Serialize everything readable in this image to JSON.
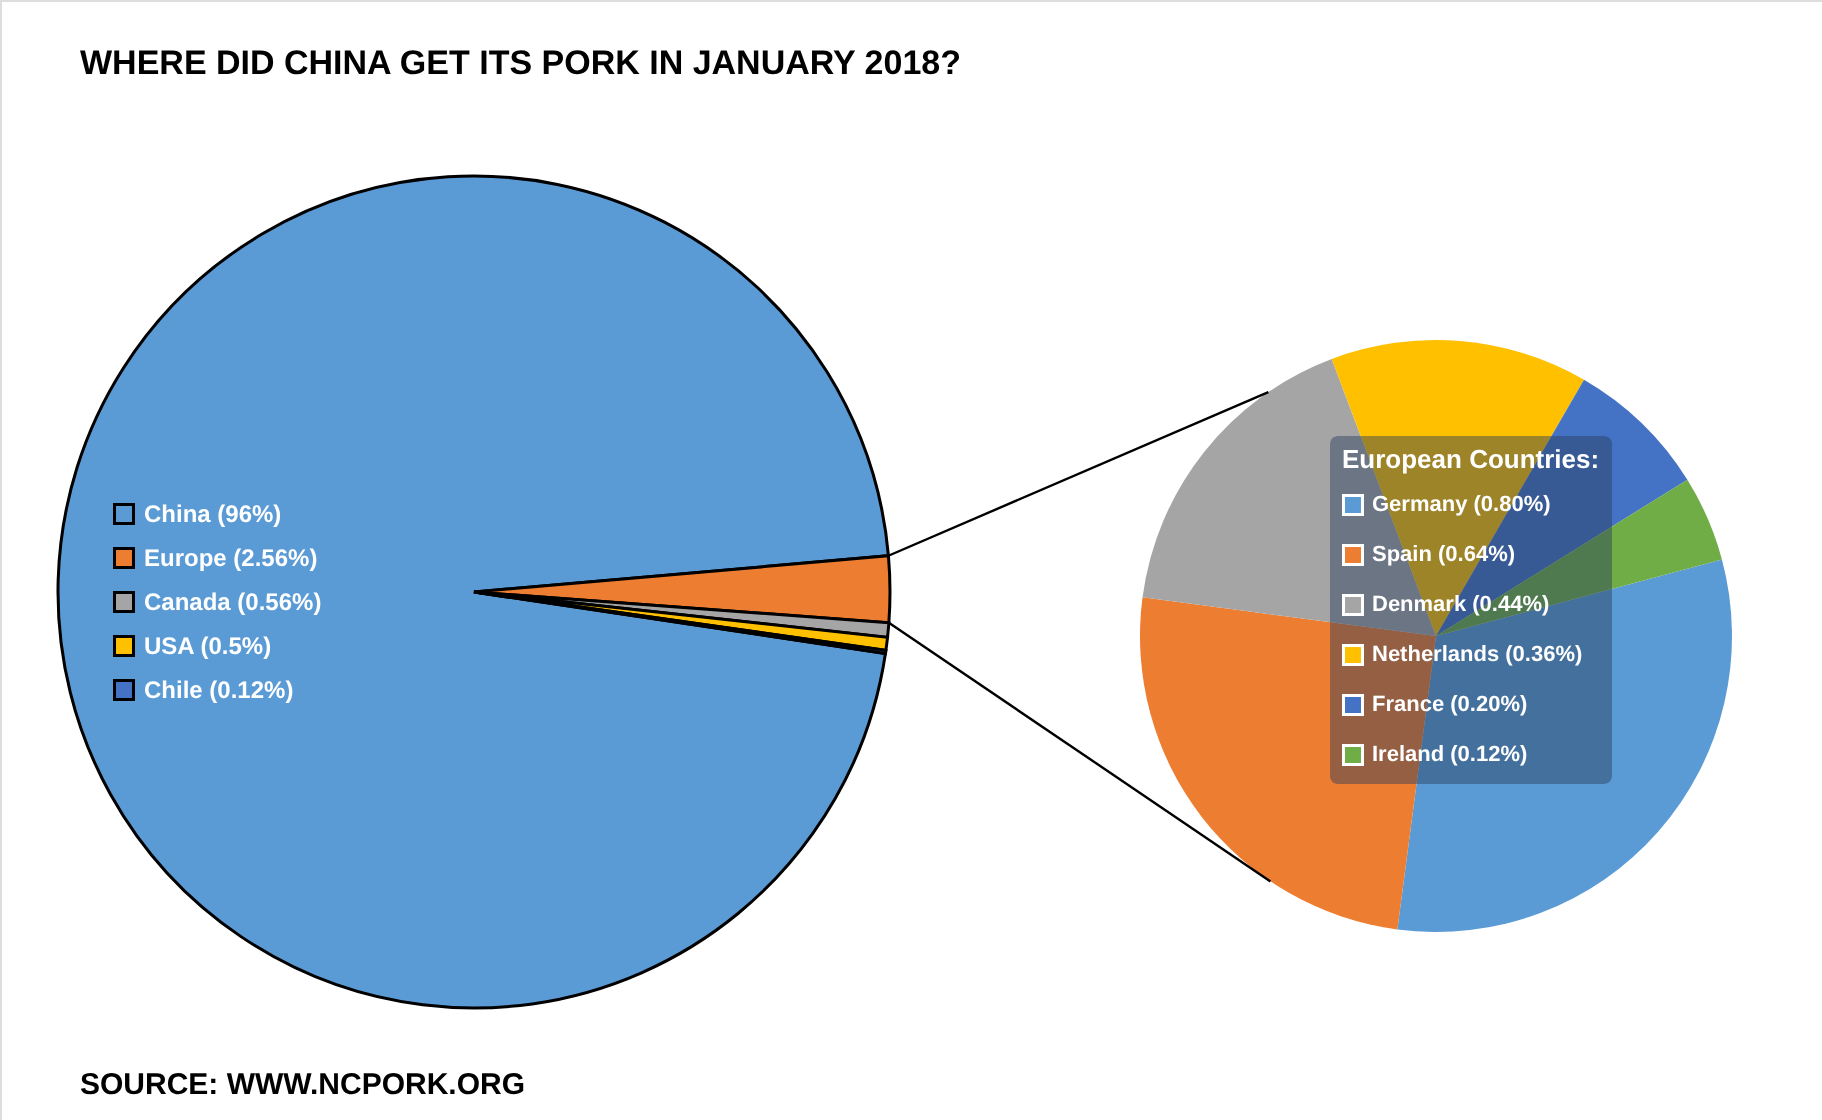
{
  "chart_data": [
    {
      "type": "pie",
      "title": "WHERE DID CHINA GET ITS PORK IN JANUARY 2018?",
      "annotations": [
        "SOURCE: WWW.NCPORK.ORG"
      ],
      "legend": "left",
      "categories": [
        "China  (96%)",
        "Europe  (2.56%)",
        "Canada  (0.56%)",
        "USA  (0.5%)",
        "Chile  (0.12%)"
      ],
      "values": [
        96,
        2.56,
        0.56,
        0.5,
        0.12
      ],
      "colors": [
        "#5b9bd5",
        "#ed7d31",
        "#a5a5a5",
        "#ffc000",
        "#4472c4"
      ]
    },
    {
      "type": "pie",
      "legend_title": "European Countries:",
      "legend": "center",
      "categories": [
        "Germany  (0.80%)",
        "Spain  (0.64%)",
        "Denmark  (0.44%)",
        "Netherlands  (0.36%)",
        "France  (0.20%)",
        "Ireland  (0.12%)"
      ],
      "values": [
        0.8,
        0.64,
        0.44,
        0.36,
        0.2,
        0.12
      ],
      "colors": [
        "#5b9bd5",
        "#ed7d31",
        "#a5a5a5",
        "#ffc000",
        "#4472c4",
        "#70ad47"
      ]
    }
  ]
}
